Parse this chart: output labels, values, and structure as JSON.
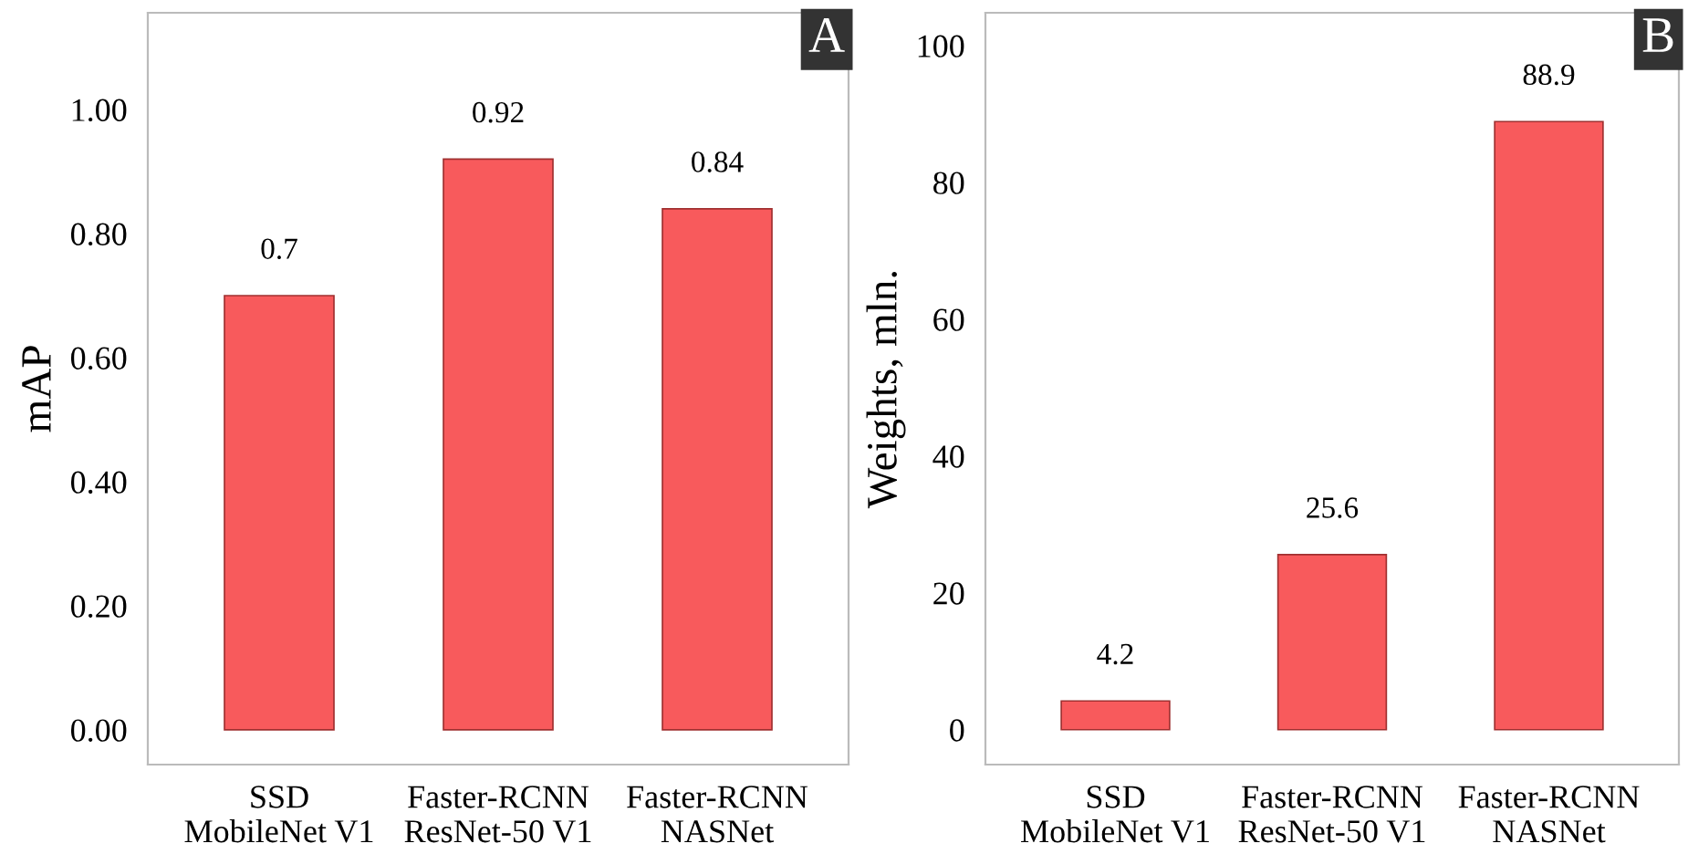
{
  "chart_data": [
    {
      "type": "bar",
      "ylabel": "mAP",
      "categories": [
        "SSD\nMobileNet V1",
        "Faster-RCNN\nResNet-50 V1",
        "Faster-RCNN\nNASNet"
      ],
      "values": [
        0.7,
        0.92,
        0.84
      ],
      "color": "#f85a5c",
      "value_labels": [
        "0.7",
        "0.92",
        "0.84"
      ],
      "ylim": [
        -0.056,
        1.156
      ],
      "yticks": [
        {
          "value": 0,
          "label": "0.00"
        },
        {
          "value": 0.2,
          "label": "0.20"
        },
        {
          "value": 0.4,
          "label": "0.40"
        },
        {
          "value": 0.6,
          "label": "0.60"
        },
        {
          "value": 0.8,
          "label": "0.80"
        },
        {
          "value": 1.0,
          "label": "1.00"
        }
      ],
      "grid": false,
      "annotations": [
        "A"
      ]
    },
    {
      "type": "bar",
      "ylabel": "Weights, mln.",
      "categories": [
        "SSD\nMobileNet V1",
        "Faster-RCNN\nResNet-50 V1",
        "Faster-RCNN\nNASNet"
      ],
      "values": [
        4.2,
        25.6,
        88.9
      ],
      "color": "#f85a5c",
      "data_labels": true,
      "ylim": [
        -5.1,
        104.8
      ],
      "yticks": [
        0,
        20,
        40,
        60,
        80,
        100
      ],
      "grid": false,
      "annotations": [
        "B"
      ]
    }
  ]
}
